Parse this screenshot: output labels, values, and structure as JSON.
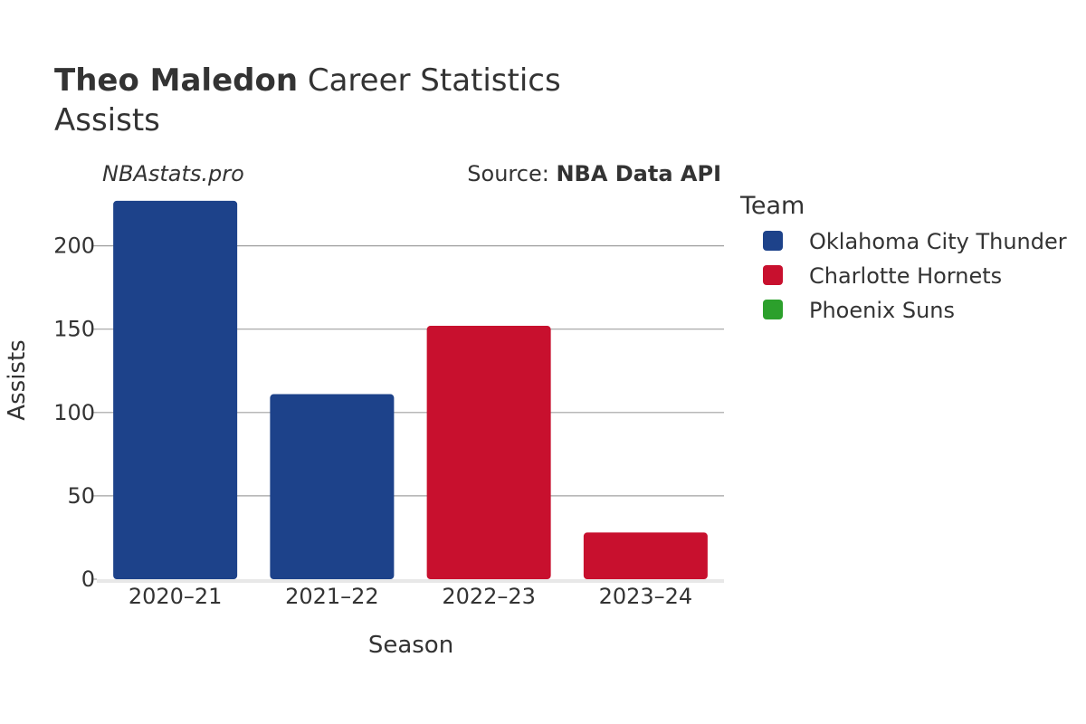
{
  "chart_data": {
    "type": "bar",
    "title_bold": "Theo Maledon",
    "title_rest": " Career Statistics",
    "subtitle": "Assists",
    "watermark": "NBAstats.pro",
    "source_prefix": "Source: ",
    "source_name": "NBA Data API",
    "xlabel": "Season",
    "ylabel": "Assists",
    "categories": [
      "2020–21",
      "2021–22",
      "2022–23",
      "2023–24"
    ],
    "values": [
      227,
      111,
      152,
      28
    ],
    "bar_teams": [
      "Oklahoma City Thunder",
      "Oklahoma City Thunder",
      "Charlotte Hornets",
      "Charlotte Hornets"
    ],
    "ylim": [
      0,
      230
    ],
    "yticks": [
      0,
      50,
      100,
      150,
      200
    ],
    "grid": true,
    "legend": {
      "title": "Team",
      "position": "right",
      "items": [
        {
          "name": "Oklahoma City Thunder",
          "color": "#1d428a"
        },
        {
          "name": "Charlotte Hornets",
          "color": "#c8102e"
        },
        {
          "name": "Phoenix Suns",
          "color": "#2ca02c"
        }
      ]
    }
  }
}
